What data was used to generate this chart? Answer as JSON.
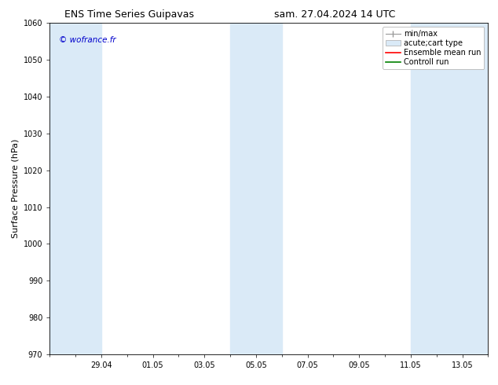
{
  "title_left": "ENS Time Series Guipavas",
  "title_right": "sam. 27.04.2024 14 UTC",
  "ylabel": "Surface Pressure (hPa)",
  "ylim": [
    970,
    1060
  ],
  "yticks": [
    970,
    980,
    990,
    1000,
    1010,
    1020,
    1030,
    1040,
    1050,
    1060
  ],
  "xtick_labels": [
    "29.04",
    "01.05",
    "03.05",
    "05.05",
    "07.05",
    "09.05",
    "11.05",
    "13.05"
  ],
  "watermark": "© wofrance.fr",
  "watermark_color": "#0000cc",
  "bg_color": "#ffffff",
  "plot_bg_color": "#ffffff",
  "band_color": "#daeaf7",
  "title_fontsize": 9,
  "tick_fontsize": 7,
  "ylabel_fontsize": 8,
  "legend_fontsize": 7
}
